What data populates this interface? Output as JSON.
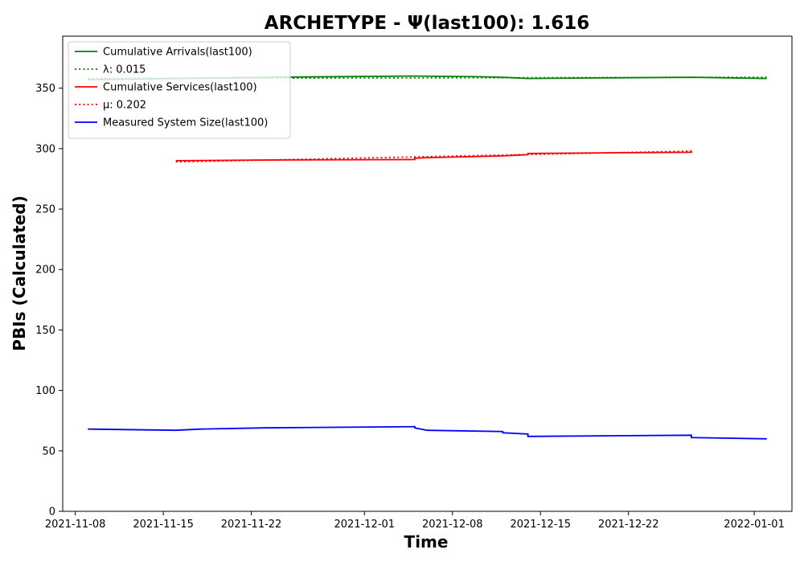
{
  "chart_data": {
    "type": "line",
    "title": "ARCHETYPE -  Ψ(last100): 1.616",
    "xlabel": "Time",
    "ylabel": "PBIs (Calculated)",
    "ylim": [
      0,
      393
    ],
    "xlim": [
      "2021-11-07",
      "2022-01-04"
    ],
    "x_ticks": [
      "2021-11-08",
      "2021-11-15",
      "2021-11-22",
      "2021-12-01",
      "2021-12-08",
      "2021-12-15",
      "2021-12-22",
      "2022-01-01"
    ],
    "y_ticks": [
      0,
      50,
      100,
      150,
      200,
      250,
      300,
      350
    ],
    "grid": false,
    "legend_position": "top-left",
    "series": [
      {
        "name": "Cumulative Arrivals(last100)",
        "color": "#008000",
        "style": "solid",
        "points": [
          [
            "2021-11-09",
            357
          ],
          [
            "2021-11-16",
            358
          ],
          [
            "2021-11-23",
            359
          ],
          [
            "2021-12-05",
            360
          ],
          [
            "2021-12-10",
            359.5
          ],
          [
            "2021-12-12",
            359
          ],
          [
            "2021-12-14",
            358
          ],
          [
            "2021-12-20",
            358.5
          ],
          [
            "2021-12-27",
            359
          ],
          [
            "2022-01-02",
            358
          ]
        ]
      },
      {
        "name": "λ: 0.015",
        "color": "#008000",
        "style": "dotted",
        "points": [
          [
            "2021-11-09",
            358
          ],
          [
            "2022-01-02",
            359
          ]
        ]
      },
      {
        "name": "Cumulative Services(last100)",
        "color": "#ff0000",
        "style": "solid",
        "points": [
          [
            "2021-11-16",
            290
          ],
          [
            "2021-11-22",
            290.5
          ],
          [
            "2021-12-05",
            291
          ],
          [
            "2021-12-05",
            292
          ],
          [
            "2021-12-06",
            292.5
          ],
          [
            "2021-12-12",
            294
          ],
          [
            "2021-12-14",
            295
          ],
          [
            "2021-12-14",
            296
          ],
          [
            "2021-12-20",
            296.5
          ],
          [
            "2021-12-27",
            297
          ],
          [
            "2021-12-27",
            298
          ]
        ]
      },
      {
        "name": "μ: 0.202",
        "color": "#ff0000",
        "style": "dotted",
        "points": [
          [
            "2021-11-16",
            289
          ],
          [
            "2021-12-27",
            298
          ]
        ]
      },
      {
        "name": "Measured System Size(last100)",
        "color": "#0000ff",
        "style": "solid",
        "points": [
          [
            "2021-11-09",
            68
          ],
          [
            "2021-11-16",
            67
          ],
          [
            "2021-11-18",
            68
          ],
          [
            "2021-11-23",
            69
          ],
          [
            "2021-12-05",
            70
          ],
          [
            "2021-12-05",
            69
          ],
          [
            "2021-12-06",
            67
          ],
          [
            "2021-12-12",
            66
          ],
          [
            "2021-12-12",
            65
          ],
          [
            "2021-12-14",
            64
          ],
          [
            "2021-12-14",
            62
          ],
          [
            "2021-12-27",
            63
          ],
          [
            "2021-12-27",
            61
          ],
          [
            "2022-01-02",
            60
          ]
        ]
      }
    ]
  }
}
